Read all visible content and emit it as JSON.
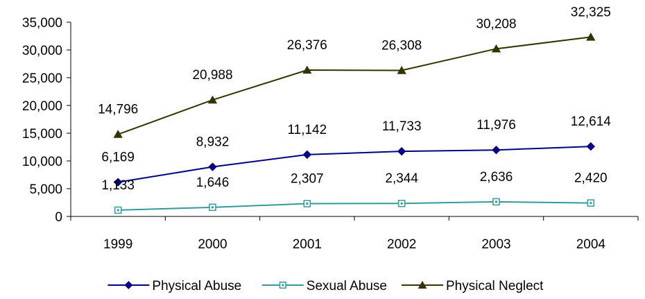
{
  "chart_data": {
    "type": "line",
    "title": "",
    "xlabel": "",
    "ylabel": "",
    "categories": [
      "1999",
      "2000",
      "2001",
      "2002",
      "2003",
      "2004"
    ],
    "ylim": [
      0,
      35000
    ],
    "yticks": [
      0,
      5000,
      10000,
      15000,
      20000,
      25000,
      30000,
      35000
    ],
    "ytick_labels": [
      "0",
      "5,000",
      "10,000",
      "15,000",
      "20,000",
      "25,000",
      "30,000",
      "35,000"
    ],
    "grid": false,
    "legend_position": "bottom",
    "series": [
      {
        "name": "Physical Abuse",
        "values": [
          6169,
          8932,
          11142,
          11733,
          11976,
          12614
        ],
        "labels": [
          "6,169",
          "8,932",
          "11,142",
          "11,733",
          "11,976",
          "12,614"
        ],
        "color": "#000080",
        "marker": "diamond"
      },
      {
        "name": "Sexual Abuse",
        "values": [
          1133,
          1646,
          2307,
          2344,
          2636,
          2420
        ],
        "labels": [
          "1,133",
          "1,646",
          "2,307",
          "2,344",
          "2,636",
          "2,420"
        ],
        "color": "#339999",
        "marker": "square-open"
      },
      {
        "name": "Physical Neglect",
        "values": [
          14796,
          20988,
          26376,
          26308,
          30208,
          32325
        ],
        "labels": [
          "14,796",
          "20,988",
          "26,376",
          "26,308",
          "30,208",
          "32,325"
        ],
        "color": "#333300",
        "marker": "triangle"
      }
    ]
  }
}
